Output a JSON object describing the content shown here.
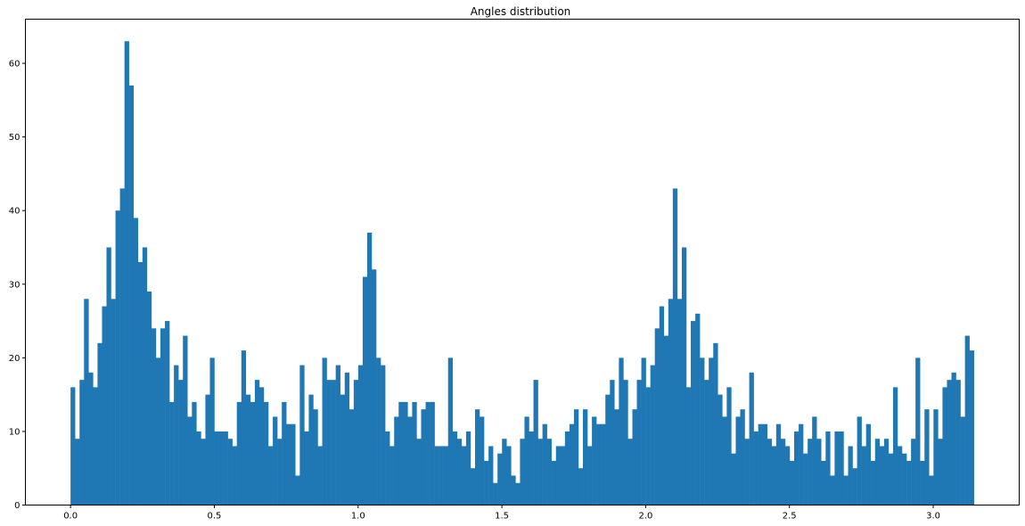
{
  "chart_data": {
    "type": "bar",
    "title": "Angles distribution",
    "xlabel": "",
    "ylabel": "",
    "bar_color": "#1f77b4",
    "bin_start": 0.0,
    "bin_end": 3.1416,
    "xlim": [
      -0.157,
      3.299
    ],
    "ylim": [
      0,
      66
    ],
    "x_ticks": [
      0.0,
      0.5,
      1.0,
      1.5,
      2.0,
      2.5,
      3.0
    ],
    "x_tick_labels": [
      "0.0",
      "0.5",
      "1.0",
      "1.5",
      "2.0",
      "2.5",
      "3.0"
    ],
    "y_ticks": [
      0,
      10,
      20,
      30,
      40,
      50,
      60
    ],
    "y_tick_labels": [
      "0",
      "10",
      "20",
      "30",
      "40",
      "50",
      "60"
    ],
    "grid": false,
    "values": [
      16,
      9,
      17,
      28,
      18,
      16,
      22,
      27,
      35,
      28,
      40,
      43,
      63,
      57,
      39,
      33,
      35,
      29,
      24,
      20,
      24,
      25,
      14,
      19,
      17,
      23,
      12,
      14,
      10,
      9,
      15,
      20,
      10,
      10,
      10,
      9,
      8,
      14,
      21,
      15,
      14,
      17,
      16,
      14,
      8,
      12,
      9,
      14,
      11,
      11,
      4,
      19,
      10,
      15,
      13,
      8,
      20,
      17,
      17,
      19,
      15,
      18,
      13,
      17,
      19,
      31,
      37,
      32,
      20,
      19,
      10,
      8,
      12,
      14,
      14,
      12,
      14,
      9,
      13,
      14,
      14,
      8,
      8,
      8,
      20,
      10,
      9,
      8,
      10,
      5,
      13,
      12,
      6,
      8,
      3,
      7,
      9,
      8,
      4,
      3,
      9,
      12,
      10,
      17,
      9,
      11,
      9,
      6,
      8,
      8,
      10,
      11,
      13,
      5,
      13,
      8,
      12,
      11,
      11,
      15,
      17,
      13,
      20,
      17,
      9,
      13,
      17,
      20,
      16,
      19,
      24,
      27,
      23,
      28,
      43,
      28,
      35,
      16,
      25,
      26,
      20,
      17,
      20,
      22,
      15,
      12,
      16,
      7,
      12,
      13,
      9,
      18,
      10,
      11,
      11,
      9,
      8,
      11,
      9,
      8,
      6,
      10,
      11,
      7,
      9,
      12,
      9,
      6,
      10,
      4,
      10,
      10,
      4,
      8,
      5,
      12,
      8,
      11,
      6,
      9,
      8,
      9,
      7,
      16,
      8,
      7,
      6,
      9,
      20,
      6,
      13,
      4,
      13,
      9,
      16,
      17,
      18,
      17,
      12,
      23,
      21
    ]
  }
}
